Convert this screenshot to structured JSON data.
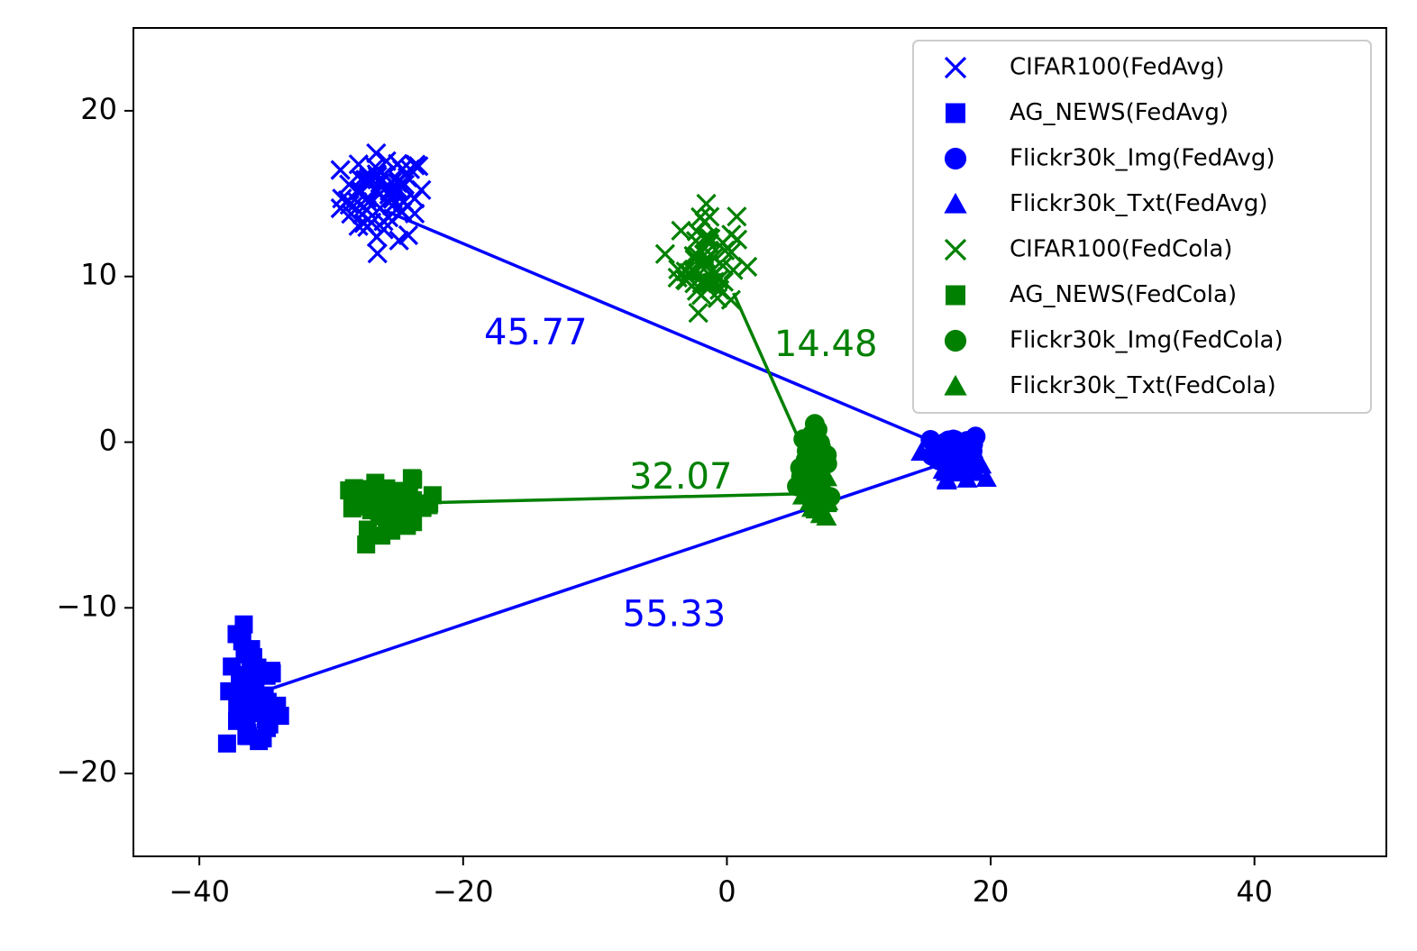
{
  "chart_data": {
    "type": "scatter",
    "title": "",
    "xlabel": "",
    "ylabel": "",
    "xlim": [
      -45,
      50
    ],
    "ylim": [
      -25,
      25
    ],
    "grid": false,
    "legend_position": "top-right",
    "x_ticks": [
      {
        "value": -40,
        "label": "−40"
      },
      {
        "value": -20,
        "label": "−20"
      },
      {
        "value": 0,
        "label": "0"
      },
      {
        "value": 20,
        "label": "20"
      },
      {
        "value": 40,
        "label": "40"
      }
    ],
    "y_ticks": [
      {
        "value": 20,
        "label": "20"
      },
      {
        "value": 10,
        "label": "10"
      },
      {
        "value": 0,
        "label": "0"
      },
      {
        "value": -10,
        "label": "−10"
      },
      {
        "value": -20,
        "label": "−20"
      }
    ],
    "colors": {
      "FedAvg": "#0000ff",
      "FedCola": "#008000"
    },
    "series": [
      {
        "name": "CIFAR100(FedAvg)",
        "marker": "x",
        "color": "#0000ff",
        "center": [
          -26,
          14.8
        ],
        "spread": [
          1.6,
          1.3
        ],
        "count": 70
      },
      {
        "name": "AG_NEWS(FedAvg)",
        "marker": "square",
        "color": "#0000ff",
        "center": [
          -36,
          -15.5
        ],
        "spread": [
          1.0,
          1.8
        ],
        "count": 45
      },
      {
        "name": "Flickr30k_Img(FedAvg)",
        "marker": "circle",
        "color": "#0000ff",
        "center": [
          17.5,
          -0.4
        ],
        "spread": [
          0.9,
          0.5
        ],
        "count": 45
      },
      {
        "name": "Flickr30k_Txt(FedAvg)",
        "marker": "triangle",
        "color": "#0000ff",
        "center": [
          17.5,
          -1.2
        ],
        "spread": [
          0.8,
          0.5
        ],
        "count": 40
      },
      {
        "name": "CIFAR100(FedCola)",
        "marker": "x",
        "color": "#008000",
        "center": [
          -1.5,
          11.0
        ],
        "spread": [
          1.1,
          1.5
        ],
        "count": 60
      },
      {
        "name": "AG_NEWS(FedCola)",
        "marker": "square",
        "color": "#008000",
        "center": [
          -25.5,
          -3.8
        ],
        "spread": [
          1.8,
          0.7
        ],
        "count": 45
      },
      {
        "name": "Flickr30k_Img(FedCola)",
        "marker": "circle",
        "color": "#008000",
        "center": [
          6.5,
          -1.0
        ],
        "spread": [
          0.6,
          0.9
        ],
        "count": 40
      },
      {
        "name": "Flickr30k_Txt(FedCola)",
        "marker": "triangle",
        "color": "#008000",
        "center": [
          7.0,
          -3.2
        ],
        "spread": [
          0.6,
          0.8
        ],
        "count": 35
      }
    ],
    "lines": [
      {
        "color": "#0000ff",
        "from": [
          -26,
          14.0
        ],
        "to": [
          17.5,
          -0.6
        ]
      },
      {
        "color": "#0000ff",
        "from": [
          -35,
          -15
        ],
        "to": [
          17.5,
          -1.0
        ]
      },
      {
        "color": "#008000",
        "from": [
          -25,
          -3.7
        ],
        "to": [
          6.5,
          -3.1
        ]
      },
      {
        "color": "#008000",
        "from": [
          0.5,
          9.0
        ],
        "to": [
          6.0,
          -0.8
        ]
      }
    ],
    "annotations": [
      {
        "text": "45.77",
        "x": -14.5,
        "y": 6.5,
        "color": "#0000ff"
      },
      {
        "text": "14.48",
        "x": 7.5,
        "y": 5.8,
        "color": "#008000"
      },
      {
        "text": "32.07",
        "x": -3.5,
        "y": -2.2,
        "color": "#008000"
      },
      {
        "text": "55.33",
        "x": -4.0,
        "y": -10.5,
        "color": "#0000ff"
      }
    ]
  }
}
